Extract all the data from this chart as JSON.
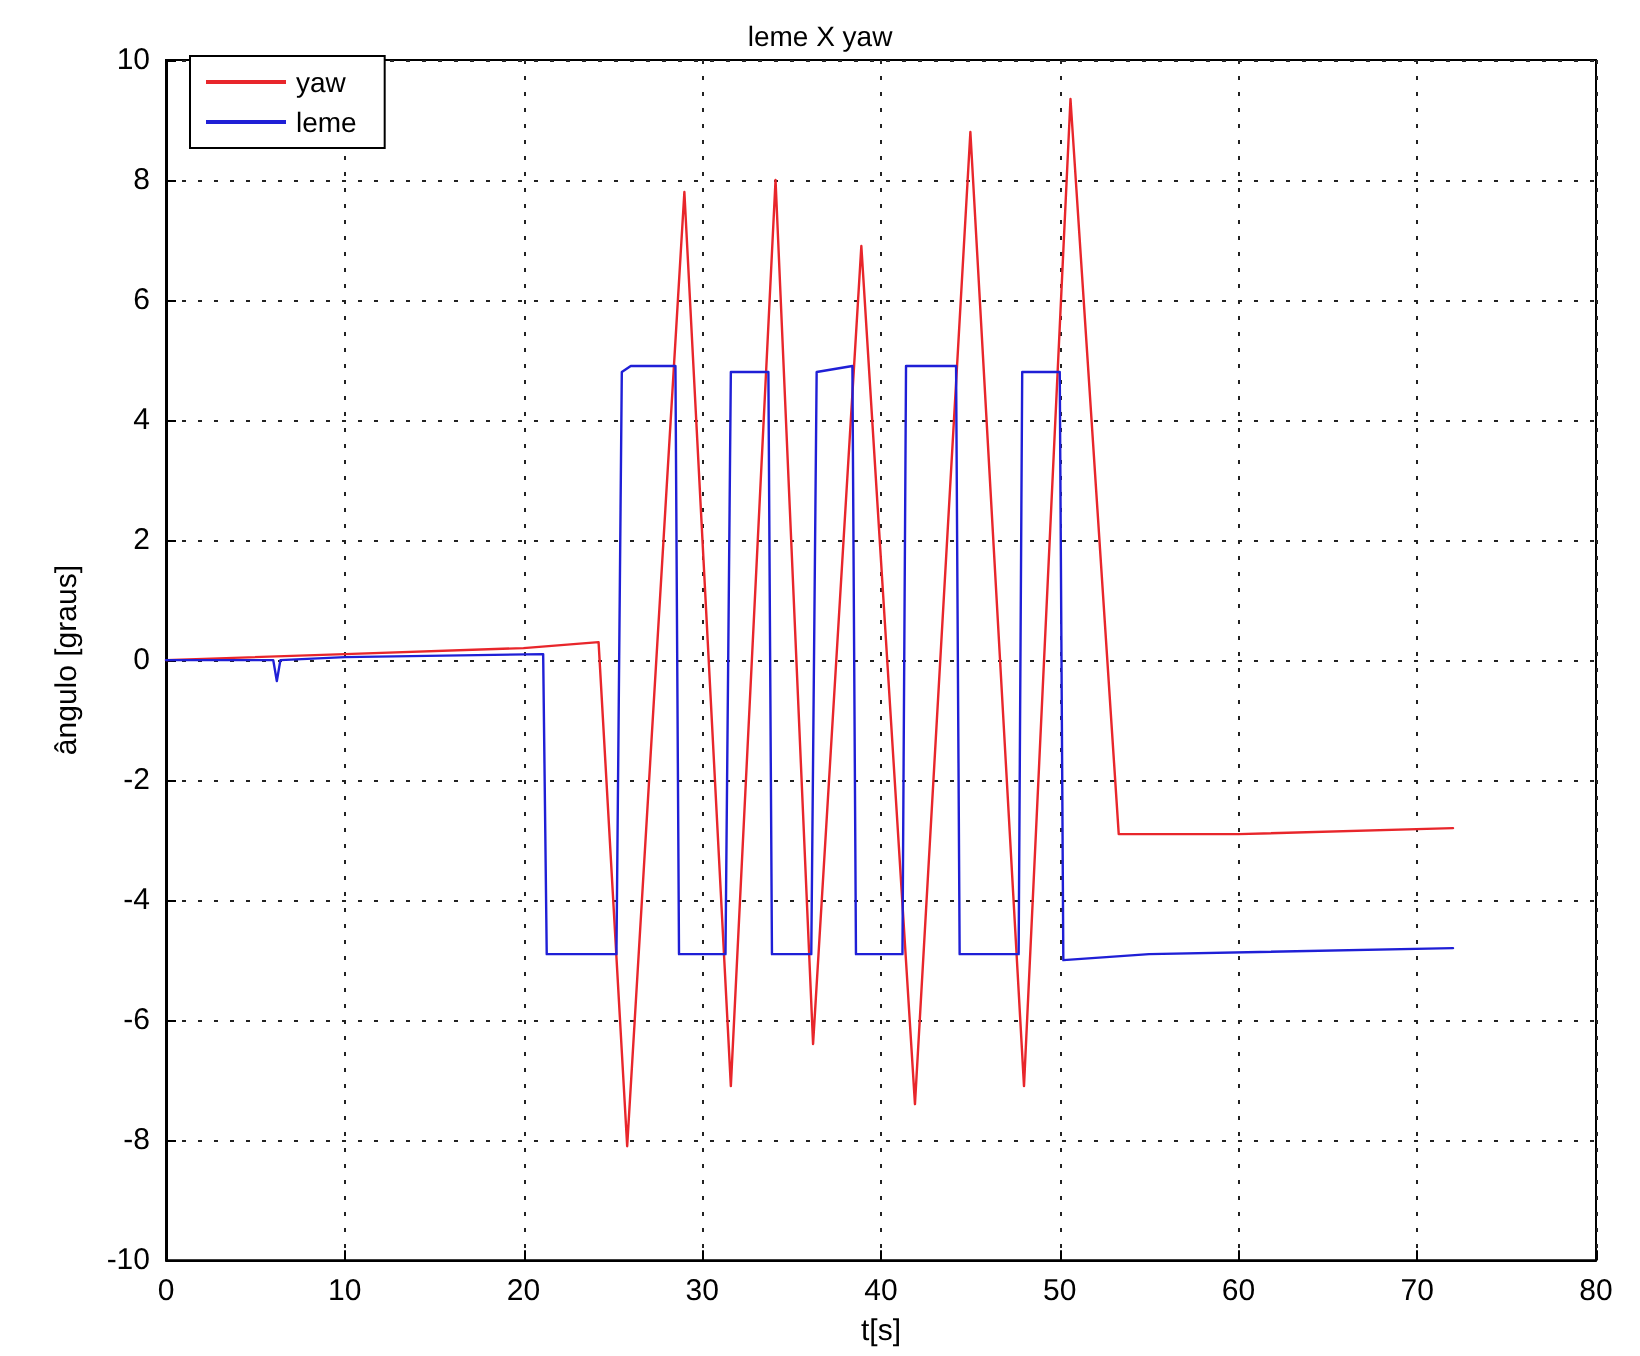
{
  "chart_data": {
    "type": "line",
    "title": "leme X yaw",
    "xlabel": "t[s]",
    "ylabel": "ângulo [graus]",
    "xlim": [
      0,
      80
    ],
    "xticks": [
      0,
      10,
      20,
      30,
      40,
      50,
      60,
      70,
      80
    ],
    "ylim": [
      -10,
      10
    ],
    "yticks": [
      -10,
      -8,
      -6,
      -4,
      -2,
      0,
      2,
      4,
      6,
      8,
      10
    ],
    "grid": true,
    "legend": "top left",
    "marker": "none",
    "series": [
      {
        "name": "yaw",
        "color": "#e8262b",
        "x": [
          0,
          10,
          20,
          24.2,
          25.8,
          29.0,
          31.6,
          34.1,
          36.2,
          38.9,
          41.9,
          45.0,
          48.0,
          50.6,
          53.3,
          60,
          72
        ],
        "values": [
          0,
          0.1,
          0.2,
          0.3,
          -8.1,
          7.8,
          -7.1,
          8.0,
          -6.4,
          6.9,
          -7.4,
          8.8,
          -7.1,
          9.35,
          -2.9,
          -2.9,
          -2.8
        ]
      },
      {
        "name": "leme",
        "color": "#1f1fd6",
        "x": [
          0,
          6.0,
          6.2,
          6.4,
          10,
          21.1,
          21.3,
          25.2,
          25.5,
          26.0,
          28.5,
          28.7,
          31.3,
          31.6,
          33.7,
          33.9,
          36.1,
          36.4,
          38.4,
          38.6,
          41.2,
          41.4,
          44.2,
          44.4,
          47.7,
          47.9,
          50.0,
          50.2,
          55,
          72
        ],
        "values": [
          0,
          0,
          -0.35,
          0,
          0.05,
          0.1,
          -4.9,
          -4.9,
          4.8,
          4.9,
          4.9,
          -4.9,
          -4.9,
          4.8,
          4.8,
          -4.9,
          -4.9,
          4.8,
          4.9,
          -4.9,
          -4.9,
          4.9,
          4.9,
          -4.9,
          -4.9,
          4.8,
          4.8,
          -5.0,
          -4.9,
          -4.8
        ]
      }
    ]
  }
}
